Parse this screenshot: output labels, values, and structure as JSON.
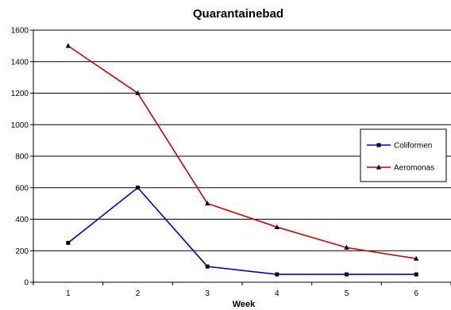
{
  "chart_data": {
    "type": "line",
    "title": "Quarantainebad",
    "xlabel": "Week",
    "ylabel": "",
    "x": [
      1,
      2,
      3,
      4,
      5,
      6
    ],
    "xlim": [
      0.5,
      6.5
    ],
    "ylim": [
      0,
      1600
    ],
    "yticks": [
      0,
      200,
      400,
      600,
      800,
      1000,
      1200,
      1400,
      1600
    ],
    "grid": "horizontal",
    "legend_position": "right",
    "series": [
      {
        "name": "Coliformen",
        "values": [
          250,
          600,
          100,
          50,
          50,
          50
        ],
        "color": "#0000cc",
        "marker": "square"
      },
      {
        "name": "Aeromonas",
        "values": [
          1500,
          1200,
          500,
          350,
          220,
          150
        ],
        "color": "#cc0000",
        "marker": "triangle"
      }
    ]
  }
}
